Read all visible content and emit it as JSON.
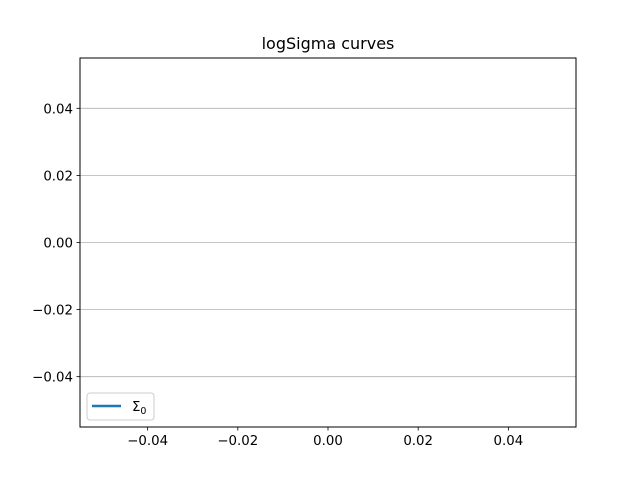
{
  "chart_data": {
    "type": "line",
    "title": "logSigma curves",
    "xlabel": "",
    "ylabel": "",
    "xlim": [
      -0.055,
      0.055
    ],
    "ylim": [
      -0.055,
      0.055
    ],
    "xticks": [
      -0.04,
      -0.02,
      0.0,
      0.02,
      0.04
    ],
    "xtick_labels": [
      "−0.04",
      "−0.02",
      "0.00",
      "0.02",
      "0.04"
    ],
    "yticks": [
      0.04,
      0.02,
      0.0,
      -0.02,
      -0.04
    ],
    "ytick_labels": [
      "0.04",
      "0.02",
      "0.00",
      "−0.02",
      "−0.04"
    ],
    "grid": {
      "x": false,
      "y": true
    },
    "legend_placement": "lower-left",
    "series": [
      {
        "name": "Σ",
        "name_subscript": "0",
        "x": [],
        "y": [],
        "color": "#1f77b4"
      }
    ]
  },
  "colors": {
    "grid": "#b0b0b0",
    "axes": "#000000",
    "background": "#ffffff",
    "legend_border": "#cccccc"
  }
}
